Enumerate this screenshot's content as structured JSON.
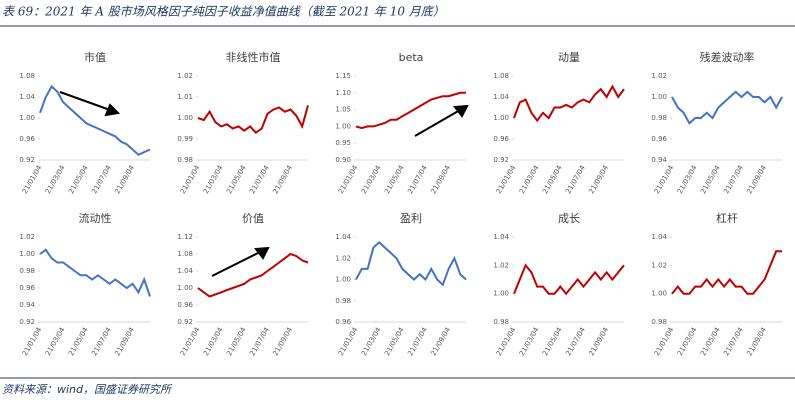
{
  "title": "表 69：2021 年 A 股市场风格因子纯因子收益净值曲线（截至 2021 年 10 月底）",
  "source": "资料来源：wind，国盛证券研究所",
  "chart_data": [
    {
      "type": "line",
      "title": "市值",
      "color": "#4472c4",
      "ylim": [
        0.92,
        1.08
      ],
      "yticks": [
        0.92,
        0.96,
        {
          "value": 1.0,
          "label": "1.00"
        },
        1.04,
        1.08
      ],
      "categories": [
        "21/01/04",
        null,
        null,
        null,
        "21/03/04",
        null,
        null,
        null,
        "21/05/04",
        null,
        null,
        null,
        "21/07/04",
        null,
        null,
        null,
        "21/09/04",
        null,
        null,
        null
      ],
      "values": [
        1.01,
        1.04,
        1.06,
        1.05,
        1.03,
        1.02,
        1.01,
        1.0,
        0.99,
        0.985,
        0.98,
        0.975,
        0.97,
        0.965,
        0.955,
        0.95,
        0.94,
        0.93,
        0.935,
        0.94
      ]
    },
    {
      "type": "line",
      "title": "非线性市值",
      "color": "#c00000",
      "ylim": [
        0.98,
        1.02
      ],
      "yticks": [
        0.98,
        0.99,
        {
          "value": 1.0,
          "label": "1.00"
        },
        1.01,
        1.02
      ],
      "categories": [
        "21/01/04",
        null,
        null,
        null,
        "21/03/04",
        null,
        null,
        null,
        "21/05/04",
        null,
        null,
        null,
        "21/07/04",
        null,
        null,
        null,
        "21/09/04",
        null,
        null,
        null
      ],
      "values": [
        1.0,
        0.999,
        1.003,
        0.998,
        0.996,
        0.997,
        0.995,
        0.996,
        0.994,
        0.996,
        0.993,
        0.995,
        1.002,
        1.004,
        1.005,
        1.003,
        1.004,
        1.001,
        0.996,
        1.006
      ]
    },
    {
      "type": "line",
      "title": "beta",
      "color": "#c00000",
      "ylim": [
        0.9,
        1.15
      ],
      "yticks": [
        {
          "value": 0.9,
          "label": "0.90"
        },
        0.95,
        {
          "value": 1.0,
          "label": "1.00"
        },
        1.05,
        {
          "value": 1.1,
          "label": "1.10"
        },
        1.15
      ],
      "categories": [
        "21/01/04",
        null,
        null,
        null,
        "21/03/04",
        null,
        null,
        null,
        "21/05/04",
        null,
        null,
        null,
        "21/07/04",
        null,
        null,
        null,
        "21/09/04",
        null,
        null,
        null
      ],
      "values": [
        1.0,
        0.995,
        1.0,
        1.0,
        1.005,
        1.01,
        1.02,
        1.02,
        1.03,
        1.04,
        1.05,
        1.06,
        1.07,
        1.08,
        1.085,
        1.09,
        1.09,
        1.095,
        1.1,
        1.1
      ]
    },
    {
      "type": "line",
      "title": "动量",
      "color": "#c00000",
      "ylim": [
        0.92,
        1.08
      ],
      "yticks": [
        0.92,
        0.96,
        {
          "value": 1.0,
          "label": "1.00"
        },
        1.04,
        1.08
      ],
      "categories": [
        "21/01/04",
        null,
        null,
        null,
        "21/03/04",
        null,
        null,
        null,
        "21/05/04",
        null,
        null,
        null,
        "21/07/04",
        null,
        null,
        null,
        "21/09/04",
        null,
        null,
        null
      ],
      "values": [
        1.0,
        1.03,
        1.035,
        1.01,
        0.995,
        1.01,
        1.0,
        1.02,
        1.02,
        1.025,
        1.02,
        1.03,
        1.035,
        1.03,
        1.045,
        1.055,
        1.04,
        1.06,
        1.04,
        1.055
      ]
    },
    {
      "type": "line",
      "title": "残差波动率",
      "color": "#4472c4",
      "ylim": [
        0.94,
        1.02
      ],
      "yticks": [
        0.94,
        0.96,
        0.98,
        {
          "value": 1.0,
          "label": "1.00"
        },
        1.02
      ],
      "categories": [
        "21/01/04",
        null,
        null,
        null,
        "21/03/04",
        null,
        null,
        null,
        "21/05/04",
        null,
        null,
        null,
        "21/07/04",
        null,
        null,
        null,
        "21/09/04",
        null,
        null,
        null
      ],
      "values": [
        1.0,
        0.99,
        0.985,
        0.975,
        0.98,
        0.98,
        0.985,
        0.98,
        0.99,
        0.995,
        1.0,
        1.005,
        1.0,
        1.005,
        1.0,
        1.0,
        0.995,
        1.0,
        0.99,
        1.0
      ]
    },
    {
      "type": "line",
      "title": "流动性",
      "color": "#4472c4",
      "ylim": [
        0.92,
        1.02
      ],
      "yticks": [
        0.92,
        0.94,
        0.96,
        0.98,
        {
          "value": 1.0,
          "label": "1.00"
        },
        1.02
      ],
      "categories": [
        "21/01/04",
        null,
        null,
        null,
        "21/03/04",
        null,
        null,
        null,
        "21/05/04",
        null,
        null,
        null,
        "21/07/04",
        null,
        null,
        null,
        "21/09/04",
        null,
        null,
        null
      ],
      "values": [
        1.0,
        1.005,
        0.995,
        0.99,
        0.99,
        0.985,
        0.98,
        0.975,
        0.975,
        0.97,
        0.975,
        0.97,
        0.965,
        0.97,
        0.965,
        0.96,
        0.965,
        0.955,
        0.97,
        0.95
      ]
    },
    {
      "type": "line",
      "title": "价值",
      "color": "#c00000",
      "ylim": [
        0.92,
        1.12
      ],
      "yticks": [
        0.92,
        0.96,
        {
          "value": 1.0,
          "label": "1.00"
        },
        1.04,
        1.08,
        1.12
      ],
      "categories": [
        "21/01/04",
        null,
        null,
        null,
        "21/03/04",
        null,
        null,
        null,
        "21/05/04",
        null,
        null,
        null,
        "21/07/04",
        null,
        null,
        null,
        "21/09/04",
        null,
        null,
        null
      ],
      "values": [
        1.0,
        0.99,
        0.98,
        0.985,
        0.99,
        0.995,
        1.0,
        1.005,
        1.01,
        1.02,
        1.025,
        1.03,
        1.04,
        1.05,
        1.06,
        1.07,
        1.08,
        1.075,
        1.065,
        1.06
      ]
    },
    {
      "type": "line",
      "title": "盈利",
      "color": "#4472c4",
      "ylim": [
        0.96,
        1.04
      ],
      "yticks": [
        0.96,
        0.98,
        {
          "value": 1.0,
          "label": "1.00"
        },
        1.02,
        1.04
      ],
      "categories": [
        "21/01/04",
        null,
        null,
        null,
        "21/03/04",
        null,
        null,
        null,
        "21/05/04",
        null,
        null,
        null,
        "21/07/04",
        null,
        null,
        null,
        "21/09/04",
        null,
        null,
        null
      ],
      "values": [
        1.0,
        1.01,
        1.01,
        1.03,
        1.035,
        1.03,
        1.025,
        1.02,
        1.01,
        1.005,
        1.0,
        1.005,
        1.0,
        1.01,
        1.0,
        0.995,
        1.01,
        1.02,
        1.005,
        1.0
      ]
    },
    {
      "type": "line",
      "title": "成长",
      "color": "#c00000",
      "ylim": [
        0.98,
        1.04
      ],
      "yticks": [
        0.98,
        {
          "value": 1.0,
          "label": "1.00"
        },
        1.02,
        1.04
      ],
      "categories": [
        "21/01/04",
        null,
        null,
        null,
        "21/03/04",
        null,
        null,
        null,
        "21/05/04",
        null,
        null,
        null,
        "21/07/04",
        null,
        null,
        null,
        "21/09/04",
        null,
        null,
        null
      ],
      "values": [
        1.0,
        1.01,
        1.02,
        1.015,
        1.005,
        1.005,
        1.0,
        1.0,
        1.005,
        1.0,
        1.005,
        1.01,
        1.005,
        1.01,
        1.015,
        1.01,
        1.015,
        1.01,
        1.015,
        1.02
      ]
    },
    {
      "type": "line",
      "title": "杠杆",
      "color": "#c00000",
      "ylim": [
        0.98,
        1.04
      ],
      "yticks": [
        0.98,
        {
          "value": 1.0,
          "label": "1.00"
        },
        1.02,
        1.04
      ],
      "categories": [
        "21/01/04",
        null,
        null,
        null,
        "21/03/04",
        null,
        null,
        null,
        "21/05/04",
        null,
        null,
        null,
        "21/07/04",
        null,
        null,
        null,
        "21/09/04",
        null,
        null,
        null
      ],
      "values": [
        1.0,
        1.005,
        1.0,
        1.0,
        1.005,
        1.005,
        1.01,
        1.005,
        1.01,
        1.005,
        1.01,
        1.005,
        1.005,
        1.0,
        1.0,
        1.005,
        1.01,
        1.02,
        1.03,
        1.03
      ]
    }
  ]
}
